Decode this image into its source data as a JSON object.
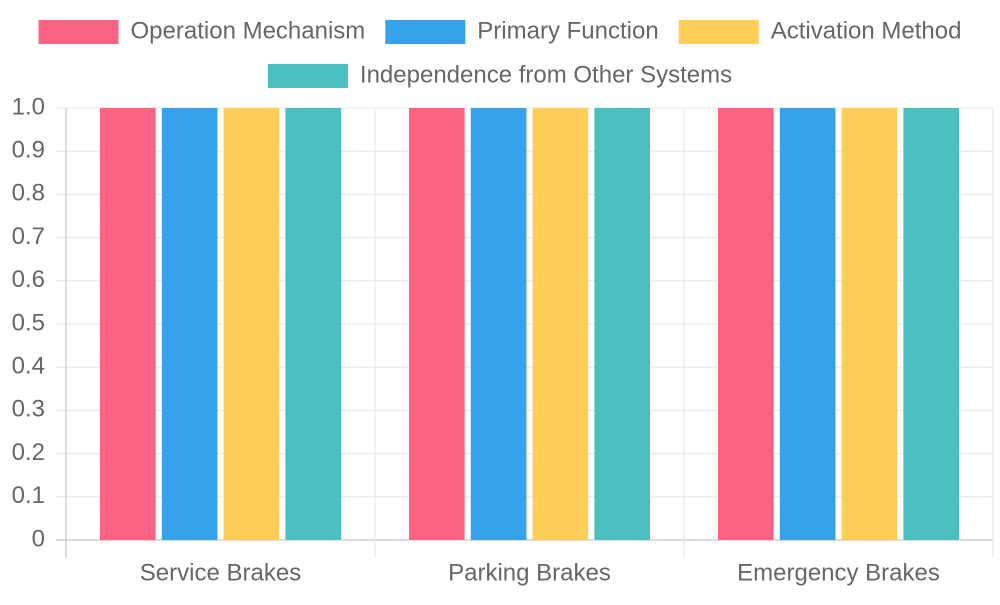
{
  "chart_data": {
    "type": "bar",
    "categories": [
      "Service Brakes",
      "Parking Brakes",
      "Emergency Brakes"
    ],
    "series": [
      {
        "name": "Operation Mechanism",
        "color": "#ff6384",
        "values": [
          1,
          1,
          1
        ]
      },
      {
        "name": "Primary Function",
        "color": "#36a2eb",
        "values": [
          1,
          1,
          1
        ]
      },
      {
        "name": "Activation Method",
        "color": "#ffce56",
        "values": [
          1,
          1,
          1
        ]
      },
      {
        "name": "Independence from Other Systems",
        "color": "#4bc0c0",
        "values": [
          1,
          1,
          1
        ]
      }
    ],
    "ylim": [
      0,
      1
    ],
    "yticks": [
      0,
      0.1,
      0.2,
      0.3,
      0.4,
      0.5,
      0.6,
      0.7,
      0.8,
      0.9,
      {
        "value": 1,
        "label": "1.0"
      }
    ],
    "grid": true,
    "legend": "top"
  }
}
